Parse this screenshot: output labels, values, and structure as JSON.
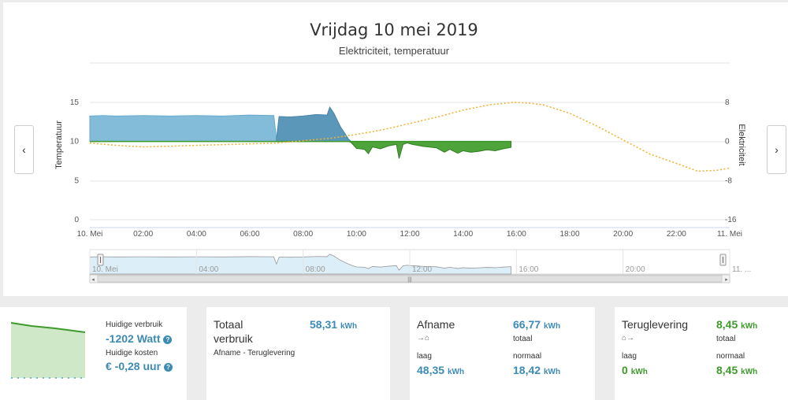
{
  "chart": {
    "title": "Vrijdag 10 mei 2019",
    "subtitle": "Elektriciteit, temperatuur",
    "left_axis_title": "Temperatuur",
    "right_axis_title": "Elektriciteit",
    "left_ticks": [
      "15",
      "10",
      "5",
      "0"
    ],
    "right_ticks": [
      "8",
      "0",
      "-8",
      "-16"
    ],
    "x_ticks": [
      "10. Mei",
      "02:00",
      "04:00",
      "06:00",
      "08:00",
      "10:00",
      "12:00",
      "14:00",
      "16:00",
      "18:00",
      "20:00",
      "22:00",
      "11. Mei"
    ],
    "navigator_ticks": [
      "10. Mei",
      "04:00",
      "08:00",
      "12:00",
      "16:00",
      "20:00",
      "11. ..."
    ],
    "prev_label": "‹",
    "next_label": "›",
    "scroll_grip": "|||"
  },
  "chart_data": {
    "type": "area",
    "title": "Vrijdag 10 mei 2019",
    "subtitle": "Elektriciteit, temperatuur",
    "x_unit": "hour",
    "xlim": [
      0,
      24
    ],
    "left_ylim": [
      0,
      15
    ],
    "right_ylim": [
      -16,
      8
    ],
    "series": [
      {
        "name": "Elektriciteit",
        "axis": "right",
        "x": [
          0,
          0.5,
          1,
          2,
          3,
          4,
          5,
          6,
          6.9,
          7.0,
          7.1,
          7.5,
          8,
          8.5,
          8.9,
          9.0,
          9.15,
          9.4,
          9.7,
          9.8,
          10.0,
          10.3,
          10.45,
          10.6,
          10.9,
          11.2,
          11.5,
          11.6,
          11.75,
          11.9,
          12.1,
          12.5,
          13.0,
          13.3,
          13.5,
          13.8,
          14.0,
          14.3,
          14.6,
          14.9,
          15.2,
          15.5,
          15.8
        ],
        "values": [
          5.2,
          5.3,
          5.2,
          5.3,
          5.2,
          5.3,
          5.2,
          5.4,
          5.3,
          0.5,
          5.1,
          5.0,
          5.2,
          5.5,
          5.4,
          7.0,
          5.8,
          3.0,
          0.5,
          -0.2,
          -1.4,
          -1.6,
          -2.5,
          -1.1,
          -1.5,
          -0.9,
          -0.6,
          -3.5,
          -0.6,
          -0.3,
          -0.6,
          -1.0,
          -1.3,
          -2.2,
          -1.6,
          -2.4,
          -1.9,
          -2.2,
          -2.0,
          -1.7,
          -1.9,
          -1.5,
          -1.2
        ],
        "color": "#7cb9d8"
      },
      {
        "name": "Temperatuur",
        "axis": "left",
        "x": [
          0,
          1,
          2,
          3,
          4,
          5,
          6,
          7,
          8,
          9,
          10,
          11,
          12,
          13,
          14,
          15,
          15.9,
          16.5,
          17,
          18,
          19,
          20,
          21,
          22,
          22.8,
          23.5,
          24
        ],
        "values": [
          9.8,
          9.5,
          9.3,
          9.4,
          9.5,
          9.6,
          9.7,
          9.8,
          10.1,
          10.4,
          10.9,
          11.5,
          12.3,
          13.1,
          14.0,
          14.7,
          15.0,
          14.9,
          14.7,
          13.6,
          12.0,
          10.2,
          8.4,
          7.2,
          6.2,
          6.3,
          6.6
        ],
        "color": "#f2b233"
      }
    ]
  },
  "summary": {
    "current_usage_label": "Huidige verbruik",
    "current_usage_value": "-1202 Watt",
    "current_cost_label": "Huidige kosten",
    "current_cost_value": "€ -0,28 uur",
    "help_icon": "?"
  },
  "total": {
    "title_line1": "Totaal",
    "title_line2": "verbruik",
    "value": "58,31",
    "unit": "kWh",
    "subtitle": "Afname - Teruglevering"
  },
  "afname": {
    "title": "Afname",
    "value": "66,77",
    "unit": "kWh",
    "value_label": "totaal",
    "low_label": "laag",
    "low_value": "48,35",
    "normal_label": "normaal",
    "normal_value": "18,42",
    "arrow_icons": "→⌂"
  },
  "teruglevering": {
    "title": "Teruglevering",
    "value": "8,45",
    "unit": "kWh",
    "value_label": "totaal",
    "low_label": "laag",
    "low_value": "0",
    "normal_label": "normaal",
    "normal_value": "8,45",
    "arrow_icons": "⌂→"
  }
}
